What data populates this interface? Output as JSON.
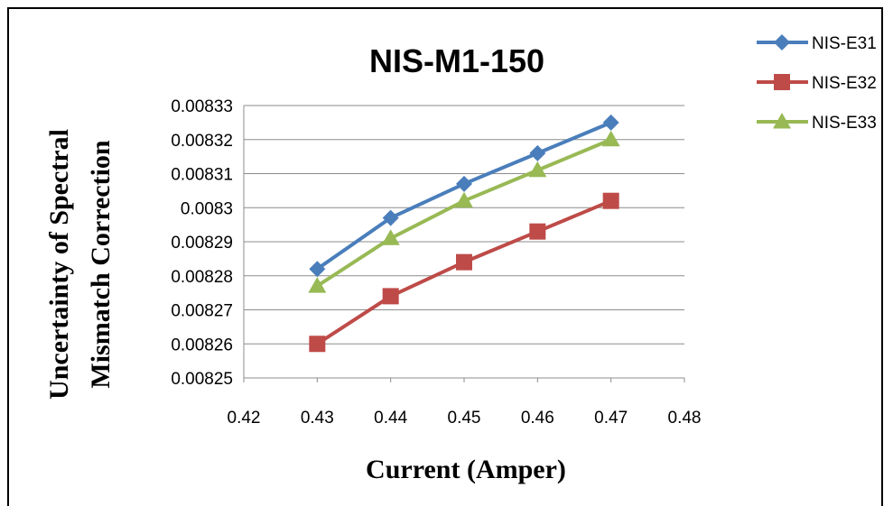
{
  "chart_data": {
    "type": "line",
    "title": "NIS-M1-150",
    "xlabel": "Current (Amper)",
    "ylabel_lines": [
      "Uncertainty of Spectral",
      "Mismatch Correction"
    ],
    "xlim": [
      0.42,
      0.48
    ],
    "ylim": [
      0.00825,
      0.00833
    ],
    "x_ticks": [
      "0.42",
      "0.43",
      "0.44",
      "0.45",
      "0.46",
      "0.47",
      "0.48"
    ],
    "y_ticks": [
      "0.00825",
      "0.00826",
      "0.00827",
      "0.00828",
      "0.00829",
      "0.0083",
      "0.00831",
      "0.00832",
      "0.00833"
    ],
    "grid": true,
    "legend_position": "top-right",
    "x": [
      0.43,
      0.44,
      0.45,
      0.46,
      0.47
    ],
    "series": [
      {
        "name": "NIS-E31",
        "color": "#4a7ebb",
        "marker": "diamond",
        "values": [
          0.008282,
          0.008297,
          0.008307,
          0.008316,
          0.008325
        ]
      },
      {
        "name": "NIS-E32",
        "color": "#be4b48",
        "marker": "square",
        "values": [
          0.00826,
          0.008274,
          0.008284,
          0.008293,
          0.008302
        ]
      },
      {
        "name": "NIS-E33",
        "color": "#98b954",
        "marker": "triangle",
        "values": [
          0.008277,
          0.008291,
          0.008302,
          0.008311,
          0.00832
        ]
      }
    ]
  }
}
